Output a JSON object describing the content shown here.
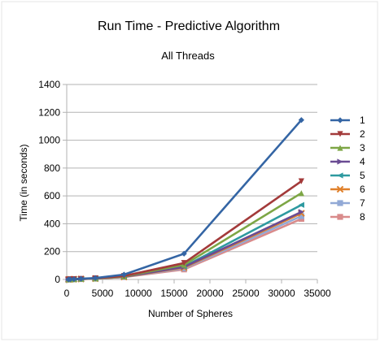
{
  "chart_data": {
    "type": "line",
    "title": "Run Time - Predictive Algorithm",
    "subtitle": "All Threads",
    "xlabel": "Number of Spheres",
    "ylabel": "Time (in seconds)",
    "xlim": [
      0,
      35000
    ],
    "ylim": [
      0,
      1400
    ],
    "xticks": [
      0,
      5000,
      10000,
      15000,
      20000,
      25000,
      30000,
      35000
    ],
    "yticks": [
      0,
      200,
      400,
      600,
      800,
      1000,
      1200,
      1400
    ],
    "grid": "horizontal",
    "legend_position": "right",
    "x": [
      250,
      500,
      1000,
      2000,
      4000,
      8000,
      16384,
      32768
    ],
    "series": [
      {
        "name": "1",
        "color": "#3465a4",
        "marker": "diamond",
        "values": [
          0,
          1,
          2,
          5,
          10,
          35,
          185,
          1145
        ]
      },
      {
        "name": "2",
        "color": "#a33a3a",
        "marker": "triangle-down",
        "values": [
          0,
          1,
          2,
          4,
          8,
          25,
          118,
          705
        ]
      },
      {
        "name": "3",
        "color": "#7da645",
        "marker": "triangle-up",
        "values": [
          0,
          1,
          2,
          4,
          7,
          22,
          105,
          620
        ]
      },
      {
        "name": "4",
        "color": "#6a4c93",
        "marker": "triangle-right",
        "values": [
          0,
          1,
          2,
          3,
          7,
          20,
          90,
          485
        ]
      },
      {
        "name": "5",
        "color": "#2e9aa0",
        "marker": "triangle-left",
        "values": [
          0,
          1,
          2,
          3,
          7,
          20,
          92,
          535
        ]
      },
      {
        "name": "6",
        "color": "#e0802b",
        "marker": "cross",
        "values": [
          0,
          1,
          2,
          3,
          6,
          18,
          85,
          475
        ]
      },
      {
        "name": "7",
        "color": "#92a9d6",
        "marker": "square",
        "values": [
          0,
          1,
          2,
          3,
          6,
          18,
          80,
          455
        ]
      },
      {
        "name": "8",
        "color": "#d98b8b",
        "marker": "square",
        "values": [
          0,
          1,
          2,
          3,
          6,
          17,
          72,
          435
        ]
      }
    ]
  }
}
